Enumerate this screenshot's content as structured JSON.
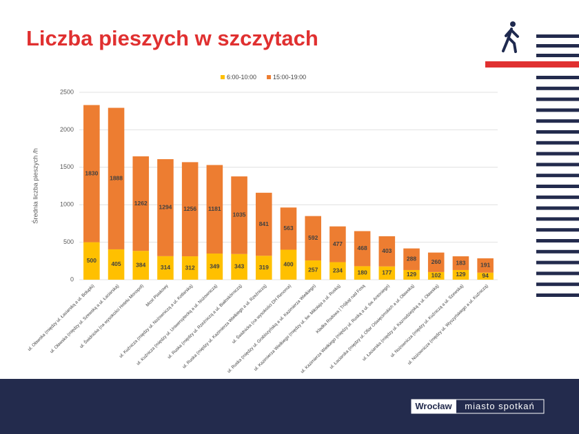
{
  "title": "Liczba pieszych w szczytach",
  "logo": {
    "name": "Wrocław",
    "tagline": "miasto spotkań"
  },
  "chart_data": {
    "type": "stacked-bar",
    "y_label": "Średnia liczba pieszych /h",
    "categories": [
      "ul. Oławska (między ul. Łaciarską a ul. Bolupki)",
      "ul. Oławska (między ul. Szewską a ul. Łaciarską)",
      "ul. Świdnicka (na wysokości Hotelu Monopol)",
      "Most Piaskowy",
      "ul. Kuźnicza (między ul. Nożowniczą a ul. Kotlarską)",
      "ul. Kuźnicza (między ul. Uniwersytecką a ul. Nożowniczą)",
      "ul. Ruska (między ul. Rzeźniczą a ul. Białoskórniczą)",
      "ul. Ruska (między ul. Kazimierza Wielkiego a ul. Rzeźniczą)",
      "ul. Świdnicka (na wysokości DH Renoma)",
      "ul. Ruska (między ul. Grabiszyńską a ul. Kazimierza Wielkiego)",
      "ul. Kazimierza Wielkiego (między ul. św. Mikołaja a ul. Ruską)",
      "Kładka Rodowa | Trójkąt nad Fosą",
      "ul. Kazimierza Wielkiego (między ul. Ruską a ul. św. Antoniego)",
      "ul. Łaciarska (między ul. Ofiar Oświęcimskich a ul. Oławską)",
      "ul. Łaciarska (między ul. Kaznodziejską a ul. Oławską)",
      "ul. Nożownicza (między ul. Kuźniczą a ul. Szewską)",
      "ul. Nożownicza (między ul. Wyszyńskiego a ul. Kuźniczą)"
    ],
    "series": [
      {
        "name": "6:00-10:00",
        "color": "#ffc000",
        "values": [
          500,
          405,
          384,
          314,
          312,
          349,
          343,
          319,
          400,
          257,
          234,
          180,
          177,
          129,
          102,
          129,
          94
        ]
      },
      {
        "name": "15:00-19:00",
        "color": "#ed7d31",
        "values": [
          1830,
          1888,
          1262,
          1294,
          1256,
          1181,
          1035,
          841,
          563,
          592,
          477,
          468,
          403,
          288,
          260,
          183,
          191
        ]
      }
    ],
    "ylim": [
      0,
      2500
    ],
    "yticks": [
      0,
      500,
      1000,
      1500,
      2000,
      2500
    ],
    "grid": true,
    "legend": "top"
  }
}
